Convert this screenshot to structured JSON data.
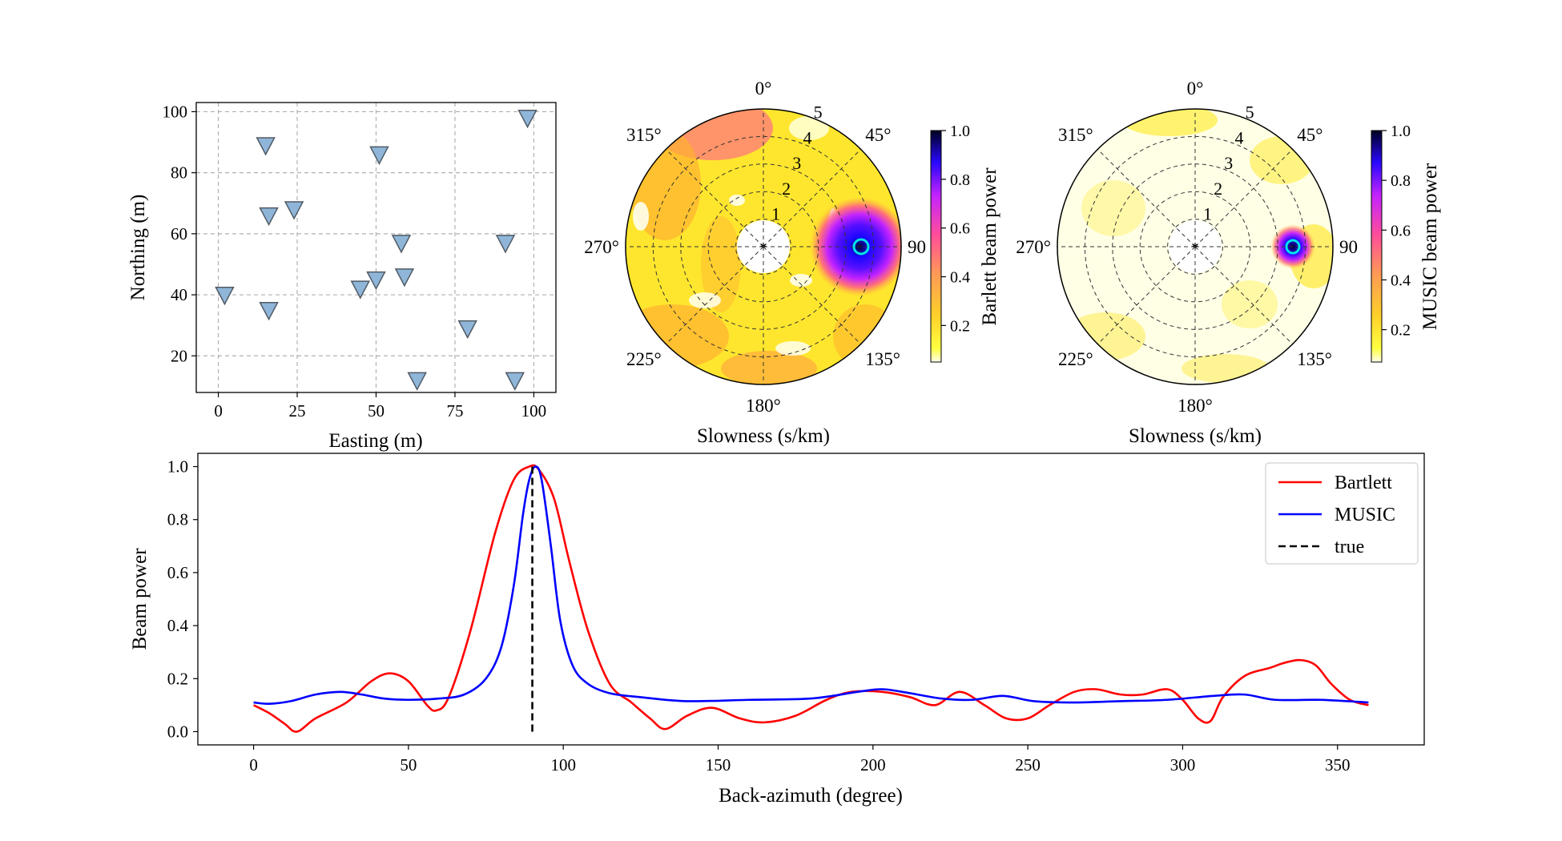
{
  "chart_data": [
    {
      "type": "scatter",
      "xlabel": "Easting (m)",
      "ylabel": "Northing (m)",
      "xlim": [
        -7,
        107
      ],
      "ylim": [
        8,
        103
      ],
      "xticks": [
        0,
        25,
        50,
        75,
        100
      ],
      "yticks": [
        20,
        40,
        60,
        80,
        100
      ],
      "grid": true,
      "marker": "triangle-down",
      "marker_color": "#8fb6d9",
      "points": [
        {
          "x": 98,
          "y": 98
        },
        {
          "x": 15,
          "y": 89
        },
        {
          "x": 51,
          "y": 86
        },
        {
          "x": 24,
          "y": 68
        },
        {
          "x": 16,
          "y": 66
        },
        {
          "x": 58,
          "y": 57
        },
        {
          "x": 91,
          "y": 57
        },
        {
          "x": 59,
          "y": 46
        },
        {
          "x": 50,
          "y": 45
        },
        {
          "x": 45,
          "y": 42
        },
        {
          "x": 2,
          "y": 40
        },
        {
          "x": 16,
          "y": 35
        },
        {
          "x": 79,
          "y": 29
        },
        {
          "x": 63,
          "y": 12
        },
        {
          "x": 94,
          "y": 12
        }
      ]
    },
    {
      "type": "heatmap",
      "projection": "polar",
      "xlabel": "Slowness (s/km)",
      "azimuth_labels": [
        "0°",
        "45°",
        "90",
        "135°",
        "180°",
        "225°",
        "270°",
        "315°"
      ],
      "radial_labels": [
        "1",
        "2",
        "3",
        "4",
        "5"
      ],
      "rlim": [
        0,
        5
      ],
      "peak": {
        "azimuth_deg": 90,
        "slowness": 3.5,
        "power": 1.0
      },
      "colorbar": {
        "label": "Barlett beam power",
        "colormap": "gnuplot2_r",
        "ticks": [
          "0.2",
          "0.4",
          "0.6",
          "0.8",
          "1.0"
        ],
        "range": [
          0.05,
          1.0
        ]
      }
    },
    {
      "type": "heatmap",
      "projection": "polar",
      "xlabel": "Slowness (s/km)",
      "azimuth_labels": [
        "0°",
        "45°",
        "90",
        "135°",
        "180°",
        "225°",
        "270°",
        "315°"
      ],
      "radial_labels": [
        "1",
        "2",
        "3",
        "4",
        "5"
      ],
      "rlim": [
        0,
        5
      ],
      "peak": {
        "azimuth_deg": 90,
        "slowness": 3.5,
        "power": 1.0
      },
      "colorbar": {
        "label": "MUSIC beam power",
        "colormap": "gnuplot2_r",
        "ticks": [
          "0.2",
          "0.4",
          "0.6",
          "0.8",
          "1.0"
        ],
        "range": [
          0.07,
          1.0
        ]
      }
    },
    {
      "type": "line",
      "xlabel": "Back-azimuth (degree)",
      "ylabel": "Beam power",
      "xlim": [
        -18,
        378
      ],
      "ylim": [
        -0.05,
        1.05
      ],
      "xticks": [
        0,
        50,
        100,
        150,
        200,
        250,
        300,
        350
      ],
      "yticks": [
        0.0,
        0.2,
        0.4,
        0.6,
        0.8,
        1.0
      ],
      "legend_position": "top-right",
      "series": [
        {
          "name": "Bartlett",
          "color": "#ff0000",
          "style": "solid",
          "x": [
            0,
            5,
            10,
            14,
            20,
            30,
            38,
            44,
            50,
            56,
            59,
            63,
            70,
            78,
            84,
            89,
            92,
            97,
            102,
            108,
            115,
            122,
            128,
            133,
            140,
            148,
            157,
            165,
            175,
            185,
            193,
            203,
            212,
            220,
            228,
            236,
            243,
            250,
            257,
            265,
            272,
            280,
            287,
            295,
            300,
            305,
            309,
            313,
            320,
            328,
            333,
            338,
            343,
            348,
            354,
            360
          ],
          "y": [
            0.1,
            0.07,
            0.03,
            0.0,
            0.05,
            0.11,
            0.19,
            0.22,
            0.19,
            0.1,
            0.08,
            0.13,
            0.38,
            0.75,
            0.95,
            1.0,
            0.99,
            0.88,
            0.64,
            0.38,
            0.18,
            0.11,
            0.05,
            0.01,
            0.06,
            0.09,
            0.05,
            0.035,
            0.06,
            0.12,
            0.15,
            0.15,
            0.13,
            0.1,
            0.15,
            0.1,
            0.05,
            0.05,
            0.1,
            0.15,
            0.16,
            0.14,
            0.14,
            0.16,
            0.12,
            0.05,
            0.04,
            0.13,
            0.21,
            0.24,
            0.26,
            0.27,
            0.25,
            0.18,
            0.12,
            0.1
          ]
        },
        {
          "name": "MUSIC",
          "color": "#0000ff",
          "style": "solid",
          "x": [
            0,
            5,
            12,
            20,
            28,
            35,
            42,
            50,
            60,
            68,
            75,
            80,
            84,
            87,
            89,
            91,
            93,
            96,
            99,
            103,
            108,
            115,
            125,
            140,
            160,
            180,
            195,
            203,
            212,
            222,
            232,
            242,
            252,
            265,
            280,
            295,
            310,
            320,
            330,
            345,
            360
          ],
          "y": [
            0.11,
            0.105,
            0.115,
            0.14,
            0.15,
            0.14,
            0.125,
            0.12,
            0.125,
            0.14,
            0.2,
            0.32,
            0.55,
            0.82,
            0.95,
            1.0,
            0.95,
            0.7,
            0.42,
            0.25,
            0.18,
            0.145,
            0.13,
            0.115,
            0.12,
            0.125,
            0.15,
            0.16,
            0.145,
            0.125,
            0.12,
            0.135,
            0.115,
            0.11,
            0.115,
            0.12,
            0.135,
            0.14,
            0.12,
            0.12,
            0.11
          ]
        },
        {
          "name": "true",
          "color": "#000000",
          "style": "dashed",
          "x": [
            90,
            90
          ],
          "y": [
            0.0,
            1.0
          ]
        }
      ]
    }
  ]
}
